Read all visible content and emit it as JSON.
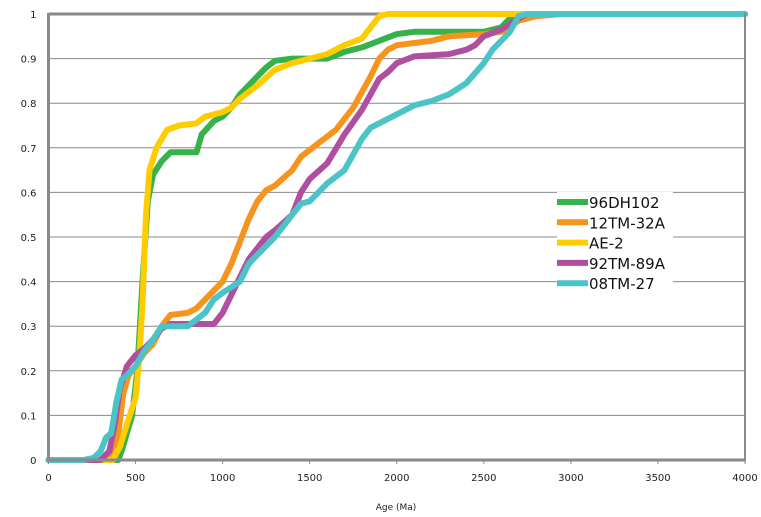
{
  "chart_data": {
    "type": "line",
    "title": "",
    "xlabel": "Age (Ma)",
    "ylabel": "",
    "xlim": [
      0,
      4000
    ],
    "ylim": [
      0,
      1
    ],
    "xticks": [
      "0",
      "500",
      "1000",
      "1500",
      "2000",
      "2500",
      "3000",
      "3500",
      "4000"
    ],
    "yticks": [
      "0",
      "0.1",
      "0.2",
      "0.3",
      "0.4",
      "0.5",
      "0.6",
      "0.7",
      "0.8",
      "0.9",
      "1"
    ],
    "grid": "horizontal",
    "legend_position": "right-middle",
    "series": [
      {
        "name": "96DH102",
        "color": "#35b24a",
        "points": [
          [
            0,
            0
          ],
          [
            400,
            0
          ],
          [
            420,
            0.02
          ],
          [
            480,
            0.1
          ],
          [
            510,
            0.2
          ],
          [
            540,
            0.4
          ],
          [
            570,
            0.58
          ],
          [
            600,
            0.64
          ],
          [
            650,
            0.67
          ],
          [
            700,
            0.69
          ],
          [
            850,
            0.69
          ],
          [
            880,
            0.73
          ],
          [
            950,
            0.76
          ],
          [
            1000,
            0.77
          ],
          [
            1050,
            0.79
          ],
          [
            1100,
            0.82
          ],
          [
            1200,
            0.86
          ],
          [
            1250,
            0.88
          ],
          [
            1300,
            0.895
          ],
          [
            1400,
            0.9
          ],
          [
            1600,
            0.9
          ],
          [
            1700,
            0.915
          ],
          [
            1800,
            0.925
          ],
          [
            1900,
            0.94
          ],
          [
            2000,
            0.955
          ],
          [
            2100,
            0.96
          ],
          [
            2500,
            0.96
          ],
          [
            2600,
            0.97
          ],
          [
            2650,
            0.99
          ],
          [
            2700,
            1
          ],
          [
            4000,
            1
          ]
        ]
      },
      {
        "name": "12TM-32A",
        "color": "#f7941d",
        "points": [
          [
            0,
            0
          ],
          [
            350,
            0
          ],
          [
            400,
            0.06
          ],
          [
            430,
            0.15
          ],
          [
            460,
            0.19
          ],
          [
            500,
            0.21
          ],
          [
            550,
            0.24
          ],
          [
            600,
            0.26
          ],
          [
            650,
            0.3
          ],
          [
            700,
            0.325
          ],
          [
            800,
            0.33
          ],
          [
            850,
            0.34
          ],
          [
            950,
            0.38
          ],
          [
            1000,
            0.4
          ],
          [
            1050,
            0.44
          ],
          [
            1100,
            0.49
          ],
          [
            1150,
            0.54
          ],
          [
            1200,
            0.58
          ],
          [
            1250,
            0.605
          ],
          [
            1300,
            0.615
          ],
          [
            1400,
            0.65
          ],
          [
            1450,
            0.68
          ],
          [
            1550,
            0.71
          ],
          [
            1650,
            0.74
          ],
          [
            1750,
            0.79
          ],
          [
            1850,
            0.86
          ],
          [
            1900,
            0.9
          ],
          [
            1950,
            0.92
          ],
          [
            2000,
            0.93
          ],
          [
            2100,
            0.935
          ],
          [
            2200,
            0.94
          ],
          [
            2300,
            0.95
          ],
          [
            2500,
            0.955
          ],
          [
            2600,
            0.96
          ],
          [
            2700,
            0.985
          ],
          [
            2800,
            0.995
          ],
          [
            2950,
            1
          ],
          [
            4000,
            1
          ]
        ]
      },
      {
        "name": "AE-2",
        "color": "#ffcc00",
        "points": [
          [
            0,
            0
          ],
          [
            370,
            0
          ],
          [
            410,
            0.03
          ],
          [
            450,
            0.08
          ],
          [
            500,
            0.14
          ],
          [
            520,
            0.22
          ],
          [
            540,
            0.35
          ],
          [
            560,
            0.55
          ],
          [
            580,
            0.65
          ],
          [
            620,
            0.7
          ],
          [
            680,
            0.74
          ],
          [
            750,
            0.75
          ],
          [
            850,
            0.755
          ],
          [
            900,
            0.77
          ],
          [
            1000,
            0.78
          ],
          [
            1050,
            0.79
          ],
          [
            1100,
            0.81
          ],
          [
            1200,
            0.84
          ],
          [
            1300,
            0.875
          ],
          [
            1400,
            0.89
          ],
          [
            1500,
            0.9
          ],
          [
            1600,
            0.91
          ],
          [
            1700,
            0.93
          ],
          [
            1800,
            0.945
          ],
          [
            1850,
            0.97
          ],
          [
            1900,
            0.995
          ],
          [
            1950,
            1
          ],
          [
            4000,
            1
          ]
        ]
      },
      {
        "name": "92TM-89A",
        "color": "#b04fa0",
        "points": [
          [
            0,
            0
          ],
          [
            300,
            0
          ],
          [
            350,
            0.02
          ],
          [
            380,
            0.08
          ],
          [
            410,
            0.16
          ],
          [
            450,
            0.21
          ],
          [
            500,
            0.235
          ],
          [
            550,
            0.25
          ],
          [
            600,
            0.27
          ],
          [
            650,
            0.295
          ],
          [
            700,
            0.305
          ],
          [
            950,
            0.305
          ],
          [
            1000,
            0.33
          ],
          [
            1050,
            0.37
          ],
          [
            1100,
            0.41
          ],
          [
            1150,
            0.45
          ],
          [
            1200,
            0.475
          ],
          [
            1250,
            0.5
          ],
          [
            1300,
            0.515
          ],
          [
            1400,
            0.55
          ],
          [
            1450,
            0.6
          ],
          [
            1500,
            0.63
          ],
          [
            1600,
            0.665
          ],
          [
            1700,
            0.73
          ],
          [
            1800,
            0.785
          ],
          [
            1850,
            0.82
          ],
          [
            1900,
            0.855
          ],
          [
            1950,
            0.87
          ],
          [
            2000,
            0.89
          ],
          [
            2100,
            0.905
          ],
          [
            2300,
            0.91
          ],
          [
            2400,
            0.92
          ],
          [
            2450,
            0.93
          ],
          [
            2500,
            0.95
          ],
          [
            2600,
            0.965
          ],
          [
            2700,
            0.99
          ],
          [
            2750,
            1
          ],
          [
            4000,
            1
          ]
        ]
      },
      {
        "name": "08TM-27",
        "color": "#4bc4c8",
        "points": [
          [
            0,
            0
          ],
          [
            200,
            0
          ],
          [
            260,
            0.005
          ],
          [
            300,
            0.02
          ],
          [
            330,
            0.05
          ],
          [
            360,
            0.06
          ],
          [
            390,
            0.13
          ],
          [
            420,
            0.18
          ],
          [
            450,
            0.19
          ],
          [
            500,
            0.21
          ],
          [
            550,
            0.245
          ],
          [
            600,
            0.27
          ],
          [
            650,
            0.3
          ],
          [
            800,
            0.3
          ],
          [
            900,
            0.33
          ],
          [
            950,
            0.36
          ],
          [
            1000,
            0.375
          ],
          [
            1100,
            0.4
          ],
          [
            1150,
            0.44
          ],
          [
            1200,
            0.46
          ],
          [
            1300,
            0.5
          ],
          [
            1400,
            0.55
          ],
          [
            1450,
            0.575
          ],
          [
            1500,
            0.58
          ],
          [
            1600,
            0.62
          ],
          [
            1700,
            0.65
          ],
          [
            1800,
            0.72
          ],
          [
            1850,
            0.745
          ],
          [
            1900,
            0.755
          ],
          [
            2000,
            0.775
          ],
          [
            2100,
            0.795
          ],
          [
            2200,
            0.805
          ],
          [
            2300,
            0.82
          ],
          [
            2400,
            0.845
          ],
          [
            2500,
            0.89
          ],
          [
            2550,
            0.92
          ],
          [
            2600,
            0.94
          ],
          [
            2650,
            0.96
          ],
          [
            2700,
            0.995
          ],
          [
            2750,
            1
          ],
          [
            4000,
            1
          ]
        ]
      }
    ]
  }
}
